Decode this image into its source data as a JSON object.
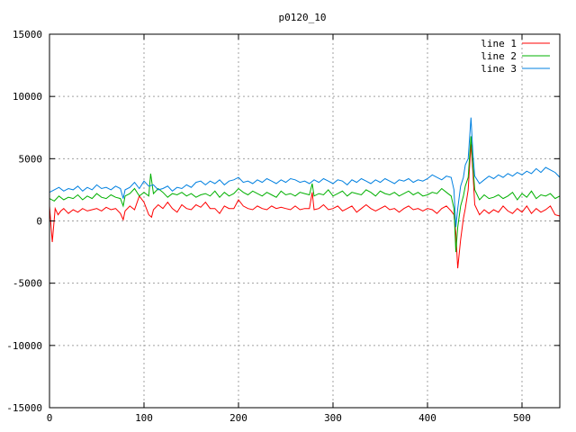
{
  "chart_data": {
    "type": "line",
    "title": "p0120_10",
    "xlabel": "",
    "ylabel": "",
    "xlim": [
      0,
      540
    ],
    "ylim": [
      -15000,
      15000
    ],
    "xticks": [
      0,
      100,
      200,
      300,
      400,
      500
    ],
    "yticks": [
      -15000,
      -10000,
      -5000,
      0,
      5000,
      10000,
      15000
    ],
    "grid": true,
    "legend_position": "top-right",
    "series": [
      {
        "name": "line 1",
        "color": "#ff0000",
        "x": [
          0,
          3,
          6,
          9,
          12,
          15,
          20,
          25,
          30,
          35,
          40,
          45,
          50,
          55,
          60,
          65,
          70,
          75,
          78,
          80,
          85,
          90,
          95,
          100,
          105,
          108,
          110,
          115,
          120,
          125,
          130,
          135,
          140,
          145,
          150,
          155,
          160,
          165,
          170,
          175,
          180,
          185,
          190,
          195,
          200,
          205,
          210,
          215,
          220,
          225,
          230,
          235,
          240,
          245,
          250,
          255,
          260,
          265,
          270,
          275,
          278,
          280,
          285,
          290,
          295,
          300,
          305,
          310,
          315,
          320,
          325,
          330,
          335,
          340,
          345,
          350,
          355,
          360,
          365,
          370,
          375,
          380,
          385,
          390,
          395,
          400,
          405,
          410,
          415,
          420,
          425,
          428,
          430,
          432,
          435,
          438,
          440,
          443,
          446,
          448,
          450,
          455,
          460,
          465,
          470,
          475,
          480,
          485,
          490,
          495,
          500,
          505,
          510,
          515,
          520,
          525,
          530,
          535,
          540
        ],
        "y": [
          1200,
          -1700,
          1000,
          500,
          800,
          1000,
          600,
          900,
          700,
          1000,
          800,
          900,
          1000,
          800,
          1100,
          900,
          1000,
          600,
          100,
          800,
          1200,
          900,
          2000,
          1500,
          500,
          300,
          900,
          1300,
          1000,
          1500,
          1000,
          700,
          1300,
          1000,
          900,
          1300,
          1100,
          1500,
          1000,
          1000,
          600,
          1200,
          1000,
          1000,
          1700,
          1200,
          1000,
          900,
          1200,
          1000,
          900,
          1200,
          1000,
          1100,
          1000,
          900,
          1200,
          900,
          1000,
          1000,
          2300,
          900,
          1000,
          1300,
          900,
          1000,
          1200,
          800,
          1000,
          1200,
          700,
          1000,
          1300,
          1000,
          800,
          1000,
          1200,
          900,
          1000,
          700,
          1000,
          1200,
          900,
          1000,
          800,
          1000,
          900,
          600,
          1000,
          1200,
          800,
          500,
          -1000,
          -3800,
          -1500,
          200,
          1000,
          2500,
          6200,
          4000,
          1300,
          500,
          900,
          600,
          900,
          700,
          1200,
          800,
          600,
          1000,
          700,
          1200,
          600,
          1000,
          700,
          900,
          1200,
          500,
          400
        ]
      },
      {
        "name": "line 2",
        "color": "#00b000",
        "x": [
          0,
          5,
          10,
          15,
          20,
          25,
          30,
          35,
          40,
          45,
          50,
          55,
          60,
          65,
          70,
          75,
          78,
          80,
          85,
          90,
          95,
          100,
          105,
          107,
          110,
          115,
          120,
          125,
          130,
          135,
          140,
          145,
          150,
          155,
          160,
          165,
          170,
          175,
          180,
          185,
          190,
          195,
          200,
          205,
          210,
          215,
          220,
          225,
          230,
          235,
          240,
          245,
          250,
          255,
          260,
          265,
          270,
          275,
          278,
          280,
          285,
          290,
          295,
          300,
          305,
          310,
          315,
          320,
          325,
          330,
          335,
          340,
          345,
          350,
          355,
          360,
          365,
          370,
          375,
          380,
          385,
          390,
          395,
          400,
          405,
          410,
          415,
          420,
          425,
          428,
          430,
          432,
          435,
          438,
          440,
          443,
          446,
          448,
          450,
          455,
          460,
          465,
          470,
          475,
          480,
          485,
          490,
          495,
          500,
          505,
          510,
          515,
          520,
          525,
          530,
          535,
          540
        ],
        "y": [
          1800,
          1600,
          2000,
          1700,
          1900,
          1800,
          2100,
          1700,
          2000,
          1800,
          2200,
          1900,
          1800,
          2100,
          1900,
          1800,
          1200,
          2000,
          2200,
          2600,
          2000,
          2300,
          2000,
          3800,
          2200,
          2600,
          2300,
          1900,
          2200,
          2100,
          2300,
          2000,
          2200,
          1900,
          2100,
          2200,
          2000,
          2400,
          1900,
          2300,
          2000,
          2200,
          2600,
          2300,
          2100,
          2400,
          2200,
          2000,
          2300,
          2100,
          1900,
          2400,
          2100,
          2200,
          2000,
          2300,
          2200,
          2100,
          3000,
          2000,
          2200,
          2100,
          2500,
          2000,
          2200,
          2400,
          2000,
          2300,
          2200,
          2100,
          2500,
          2300,
          2000,
          2400,
          2200,
          2100,
          2300,
          2000,
          2200,
          2400,
          2100,
          2300,
          2000,
          2100,
          2300,
          2200,
          2600,
          2300,
          2000,
          1000,
          -2500,
          -500,
          1200,
          2000,
          2800,
          3500,
          6800,
          4500,
          2500,
          1700,
          2100,
          1800,
          1900,
          2100,
          1800,
          2000,
          2300,
          1700,
          2200,
          1900,
          2400,
          1800,
          2100,
          2000,
          2200,
          1800,
          2000
        ]
      },
      {
        "name": "line 3",
        "color": "#0080e0",
        "x": [
          0,
          5,
          10,
          15,
          20,
          25,
          30,
          35,
          40,
          45,
          50,
          55,
          60,
          65,
          70,
          75,
          78,
          80,
          85,
          90,
          95,
          100,
          105,
          110,
          115,
          120,
          125,
          130,
          135,
          140,
          145,
          150,
          155,
          160,
          165,
          170,
          175,
          180,
          185,
          190,
          195,
          200,
          205,
          210,
          215,
          220,
          225,
          230,
          235,
          240,
          245,
          250,
          255,
          260,
          265,
          270,
          275,
          280,
          285,
          290,
          295,
          300,
          305,
          310,
          315,
          320,
          325,
          330,
          335,
          340,
          345,
          350,
          355,
          360,
          365,
          370,
          375,
          380,
          385,
          390,
          395,
          400,
          405,
          410,
          415,
          420,
          425,
          428,
          430,
          432,
          435,
          438,
          440,
          443,
          446,
          448,
          450,
          455,
          460,
          465,
          470,
          475,
          480,
          485,
          490,
          495,
          500,
          505,
          510,
          515,
          520,
          525,
          530,
          535,
          540
        ],
        "y": [
          2300,
          2500,
          2700,
          2400,
          2600,
          2500,
          2800,
          2400,
          2700,
          2500,
          2900,
          2600,
          2700,
          2500,
          2800,
          2600,
          1800,
          2500,
          2700,
          3100,
          2600,
          3200,
          2800,
          2900,
          2500,
          2600,
          2800,
          2400,
          2700,
          2600,
          2900,
          2700,
          3100,
          3200,
          2900,
          3200,
          3000,
          3300,
          2900,
          3200,
          3300,
          3500,
          3100,
          3200,
          3000,
          3300,
          3100,
          3400,
          3200,
          3000,
          3300,
          3100,
          3400,
          3300,
          3100,
          3200,
          3000,
          3300,
          3100,
          3400,
          3200,
          3000,
          3300,
          3200,
          2900,
          3300,
          3100,
          3400,
          3200,
          3000,
          3300,
          3100,
          3400,
          3200,
          3000,
          3300,
          3200,
          3400,
          3100,
          3300,
          3200,
          3400,
          3700,
          3500,
          3300,
          3600,
          3500,
          2500,
          -500,
          1000,
          2800,
          3500,
          4500,
          5000,
          8300,
          5500,
          3600,
          3000,
          3300,
          3600,
          3400,
          3700,
          3500,
          3800,
          3600,
          3900,
          3700,
          4000,
          3800,
          4200,
          3900,
          4300,
          4100,
          3900,
          3500
        ]
      }
    ]
  }
}
